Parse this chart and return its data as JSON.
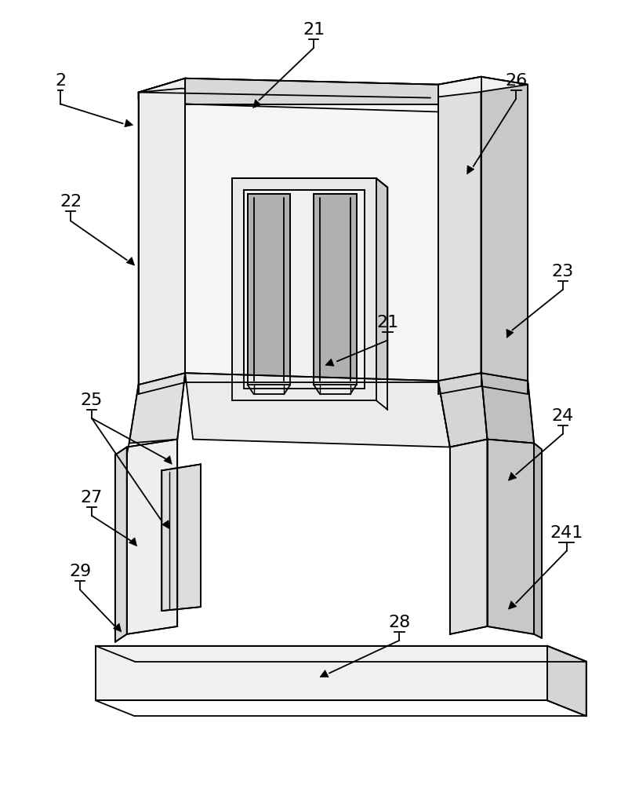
{
  "bg_color": "#ffffff",
  "line_color": "#000000",
  "lw": 1.3,
  "fig_w": 8.15,
  "fig_h": 10.0,
  "dpi": 100
}
